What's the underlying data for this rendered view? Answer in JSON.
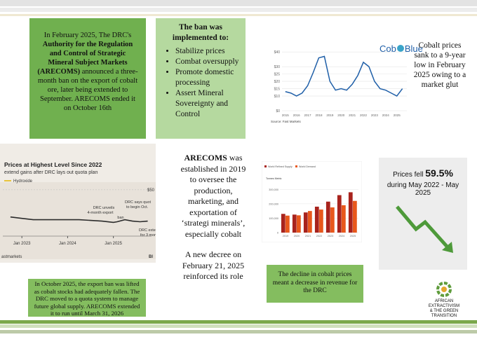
{
  "ban_intro": {
    "parts": [
      "In February 2025, The DRC's ",
      "Authority for the Regulation and Control of Strategic Mineral Subject Markets (ARECOMS)",
      " announced a three-month ban on the export of cobalt ore, later being extended to September. ARECOMS ended it on October 16th"
    ]
  },
  "ban_goals": {
    "title": "The ban was implemented to:",
    "items": [
      "Stabilize prices",
      "Combat oversupply",
      "Promote domestic processing",
      "Assert Mineral Sovereignty and Control"
    ]
  },
  "price_note": "Cobalt prices sank to a 9-year low in February 2025 owing to a market glut",
  "brand": {
    "left": "Cob",
    "right": "Blue"
  },
  "arecoms": {
    "parts": [
      "ARECOMS",
      " was established in 2019 to oversee the production, marketing, and exportation of ‘strategi minerals’, especially cobalt"
    ],
    "decree": "A new decree on February 21, 2025 reinforced its role"
  },
  "price_fall": {
    "prefix": "Prices fell",
    "percent": "59.5%",
    "period": "during May 2022 - May 2025"
  },
  "quota": "In October 2025, the export ban was lifted as cobalt stocks had adequately fallen. The DRC moved to a quota system to manage future global supply. ARECOMS extended it to run until March 31, 2026",
  "revenue": "The decline in cobalt prices meant a decrease in revenue for the DRC",
  "logo": {
    "line1": "AFRICAN EXTRACTIVISM",
    "line2": "& THE GREEN TRANSITION"
  },
  "chart_data": [
    {
      "type": "line",
      "source": "Source: Fast Markets",
      "x": [
        2015,
        2015.5,
        2016,
        2016.5,
        2017,
        2017.5,
        2018,
        2018.5,
        2019,
        2019.5,
        2020,
        2020.5,
        2021,
        2021.5,
        2022,
        2022.5,
        2023,
        2023.5,
        2024,
        2024.5,
        2025,
        2025.5
      ],
      "series": [
        {
          "color": "#1f5fa8",
          "values": [
            13,
            12,
            10,
            12,
            17,
            26,
            36,
            37,
            20,
            14,
            15,
            14,
            18,
            24,
            33,
            30,
            20,
            15,
            14,
            12,
            10,
            15
          ]
        }
      ],
      "xlim": [
        2014.7,
        2025.9
      ],
      "xticks": [
        2015,
        2016,
        2017,
        2018,
        2019,
        2020,
        2021,
        2022,
        2023,
        2024,
        2025
      ],
      "ylim": [
        0,
        42
      ],
      "yticks": [
        {
          "value": 0,
          "label": "$0"
        },
        {
          "value": 10,
          "label": "$10"
        },
        {
          "value": 15,
          "label": "$15"
        },
        {
          "value": 20,
          "label": "$20"
        },
        {
          "value": 25,
          "label": "$25"
        },
        {
          "value": 30,
          "label": "$30"
        },
        {
          "value": 40,
          "label": "$40"
        }
      ]
    },
    {
      "type": "line",
      "title": "Prices at Highest Level Since 2022",
      "subtitle": "extend gains after DRC lays out quota plan",
      "x": [
        "2022-10",
        "2023-01",
        "2023-04",
        "2023-07",
        "2023-10",
        "2024-01",
        "2024-04",
        "2024-07",
        "2024-10",
        "2025-01",
        "2025-02",
        "2025-04",
        "2025-06",
        "2025-08",
        "2025-10"
      ],
      "series": [
        {
          "name": "Hydroxide",
          "color": "#2b2b2b",
          "legend_color": "#e8c33a",
          "values": [
            30,
            29,
            28,
            28,
            28,
            28,
            28,
            27.5,
            27,
            26,
            26.5,
            28,
            27,
            26.5,
            27
          ]
        }
      ],
      "xlim": [
        "2022-08",
        "2025-11"
      ],
      "xticks": [
        {
          "value": "2023-01",
          "label": "Jan 2023"
        },
        {
          "value": "2024-01",
          "label": "Jan 2024"
        },
        {
          "value": "2025-01",
          "label": "Jan 2025"
        }
      ],
      "ylim": [
        18,
        52
      ],
      "yticks": [
        {
          "value": 50,
          "label": "$50"
        }
      ],
      "annotations": [
        "DRC unveils",
        "4-month export",
        "ban",
        "DRC says quot",
        "to begin Oct.",
        "DRC extends",
        "for 3 mont"
      ],
      "source": "astmarkets",
      "credit": "Bl"
    },
    {
      "type": "bar",
      "axis_label": "Tonnes Metric",
      "categories": [
        "2019",
        "2020",
        "2021",
        "2022",
        "2023",
        "2024",
        "2025"
      ],
      "series": [
        {
          "name": "World Refined Supply",
          "color": "#a8231d",
          "values": [
            130000,
            125000,
            140000,
            180000,
            215000,
            260000,
            280000
          ]
        },
        {
          "name": "World Demand",
          "color": "#e8581c",
          "values": [
            118000,
            120000,
            150000,
            160000,
            175000,
            190000,
            220000
          ]
        }
      ],
      "ylim": [
        0,
        350000
      ],
      "yticks": [
        0,
        {
          "value": 100000,
          "label": "100,000"
        },
        {
          "value": 200000,
          "label": "200,000"
        },
        {
          "value": 300000,
          "label": "300,000"
        }
      ]
    }
  ]
}
